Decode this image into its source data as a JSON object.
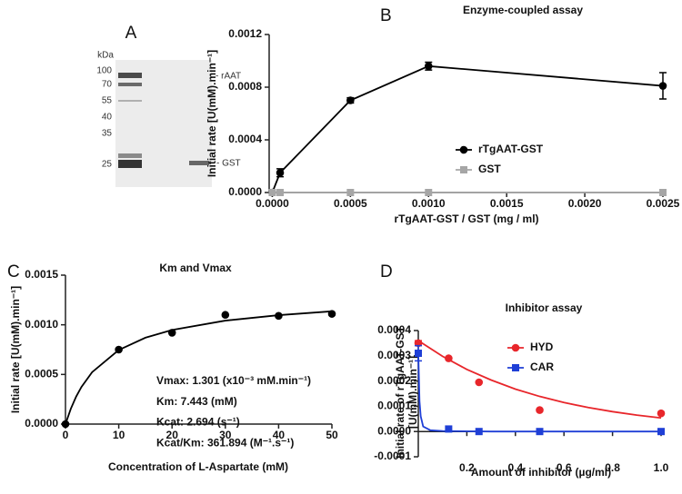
{
  "gel": {
    "letter": "A",
    "unit": "kDa",
    "markers": [
      "100",
      "70",
      "55",
      "40",
      "35",
      "25"
    ],
    "bands": [
      "- rAAT",
      "- GST"
    ]
  },
  "chart_data": [
    {
      "panel": "B",
      "type": "line",
      "title": "Enzyme-coupled assay",
      "x_label": "rTgAAT-GST / GST (mg / ml)",
      "y_label": [
        "Initial rate [U(mM).min⁻¹]"
      ],
      "x": [
        0,
        5e-05,
        0.0005,
        0.001,
        0.0025
      ],
      "xlim": [
        -2e-05,
        0.0025
      ],
      "xticks": [
        {
          "value": 0,
          "label": "0.0000"
        },
        0.0005,
        {
          "value": 0.001,
          "label": "0.0010"
        },
        0.0015,
        {
          "value": 0.002,
          "label": "0.0020"
        },
        0.0025
      ],
      "ylim": [
        0,
        0.0012
      ],
      "yticks": [
        {
          "value": 0,
          "label": "0.0000"
        },
        0.0004,
        0.0008,
        0.0012
      ],
      "series": [
        {
          "name": "rTgAAT-GST",
          "color": "#000000",
          "marker": "circle",
          "values": [
            0,
            0.00015,
            0.0007,
            0.00096,
            0.00081
          ],
          "errors": [
            null,
            3e-05,
            2e-05,
            3e-05,
            0.0001
          ]
        },
        {
          "name": "GST",
          "color": "#a6a6a6",
          "marker": "square",
          "values": [
            0,
            0,
            0,
            0,
            0
          ]
        }
      ]
    },
    {
      "panel": "C",
      "type": "scatter",
      "title": "Km and Vmax",
      "x_label": "Concentration of L-Aspartate (mM)",
      "y_label": [
        "Initial rate [U(mM).min⁻¹]"
      ],
      "xlim": [
        0,
        50
      ],
      "xticks": [
        0,
        10,
        20,
        30,
        40,
        50
      ],
      "ylim": [
        0,
        0.0015
      ],
      "yticks": [
        {
          "value": 0,
          "label": "0.0000"
        },
        0.0005,
        {
          "value": 0.001,
          "label": "0.0010"
        },
        0.0015
      ],
      "annotations": [
        "Vmax: 1.301 (x10⁻³ mM.min⁻¹)",
        "Km: 7.443 (mM)",
        "Kcat: 2.694 (s⁻¹)",
        "Kcat/Km: 361.894  (M⁻¹.s⁻¹)"
      ],
      "series": [
        {
          "color": "#000000",
          "marker": "circle",
          "x": [
            0,
            10,
            20,
            30,
            40,
            50
          ],
          "values": [
            0,
            0.00075,
            0.00092,
            0.0011,
            0.00109,
            0.00111
          ],
          "fit": {
            "x": [
              0,
              1,
              2,
              3,
              5,
              10,
              15,
              20,
              30,
              40,
              50
            ],
            "values": [
              0,
              0.000154,
              0.000276,
              0.000374,
              0.000523,
              0.000746,
              0.00087,
              0.000948,
              0.001042,
              0.001097,
              0.001136
            ]
          }
        }
      ]
    },
    {
      "panel": "D",
      "type": "scatter",
      "title": "Inhibitor assay",
      "x_label": "Amount of inhibitor (µg/ml)",
      "y_label": [
        "Initial rate of rTgAAT-GST",
        "[U(mM).min⁻¹]"
      ],
      "xlim": [
        0,
        1
      ],
      "xticks": [
        0.2,
        0.4,
        0.6,
        0.8,
        {
          "value": 1,
          "label": "1.0"
        }
      ],
      "ylim": [
        -0.0001,
        0.0004
      ],
      "yticks": [
        -0.0001,
        {
          "value": 0,
          "label": "0.0000"
        },
        0.0001,
        0.0002,
        0.0003,
        0.0004
      ],
      "xaxis_cross": 0,
      "series": [
        {
          "name": "HYD",
          "color": "#e8262b",
          "marker": "circle",
          "x": [
            0,
            0.125,
            0.25,
            0.5,
            1
          ],
          "values": [
            0.00035,
            0.00029,
            0.000195,
            8.5e-05,
            7.2e-05
          ],
          "errors": [
            1e-05,
            null,
            null,
            null,
            null
          ],
          "fit": {
            "x": [
              0,
              0.1,
              0.2,
              0.3,
              0.4,
              0.5,
              0.6,
              0.7,
              0.8,
              0.9,
              1
            ],
            "values": [
              0.00036,
              0.000298,
              0.000246,
              0.000204,
              0.000168,
              0.000139,
              0.000115,
              9.5e-05,
              7.87e-05,
              6.51e-05,
              5.38e-05
            ]
          }
        },
        {
          "name": "CAR",
          "color": "#1f3fd6",
          "marker": "square",
          "x": [
            0,
            0.125,
            0.25,
            0.5,
            1
          ],
          "values": [
            0.00031,
            1e-05,
            0,
            0,
            0
          ],
          "errors": [
            3e-05,
            null,
            null,
            null,
            null
          ],
          "fit": {
            "x": [
              0,
              0.005,
              0.01,
              0.02,
              0.05,
              0.1,
              0.3,
              1
            ],
            "values": [
              0.00031,
              0.00012,
              6e-05,
              2e-05,
              5e-06,
              2e-06,
              0,
              0
            ]
          }
        }
      ]
    }
  ]
}
